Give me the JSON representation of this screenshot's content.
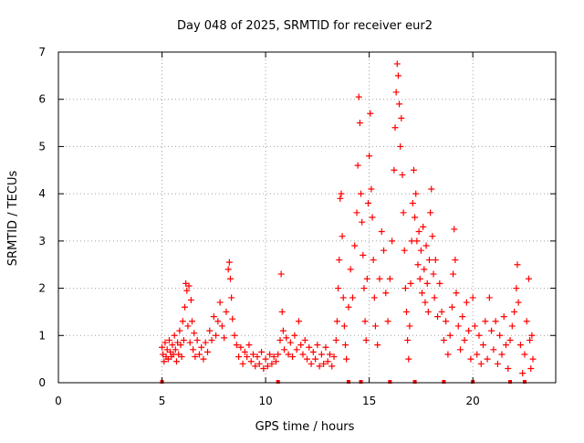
{
  "chart_data": {
    "type": "scatter",
    "title": "Day 048 of 2025, SRMTID for receiver eur2",
    "xlabel": "GPS time / hours",
    "ylabel": "SRMTID / TECUs",
    "xlim": [
      0,
      24
    ],
    "ylim": [
      0,
      7
    ],
    "xticks": [
      0,
      5,
      10,
      15,
      20
    ],
    "xtick_labels": [
      "0",
      "5",
      "10",
      "15",
      "20"
    ],
    "yticks": [
      0,
      1,
      2,
      3,
      4,
      5,
      6,
      7
    ],
    "ytick_labels": [
      "0",
      "1",
      "2",
      "3",
      "4",
      "5",
      "6",
      "7"
    ],
    "grid": true,
    "marker": "+",
    "series": [
      {
        "name": "SRMTID",
        "color": "#ff0000",
        "points": [
          [
            5.0,
            0.75
          ],
          [
            5.05,
            0.6
          ],
          [
            5.1,
            0.45
          ],
          [
            5.15,
            0.85
          ],
          [
            5.2,
            0.55
          ],
          [
            5.25,
            0.7
          ],
          [
            5.3,
            0.5
          ],
          [
            5.35,
            0.9
          ],
          [
            5.4,
            0.65
          ],
          [
            5.45,
            0.55
          ],
          [
            5.5,
            0.8
          ],
          [
            5.55,
            0.6
          ],
          [
            5.6,
            1.0
          ],
          [
            5.65,
            0.7
          ],
          [
            5.7,
            0.45
          ],
          [
            5.75,
            0.85
          ],
          [
            5.8,
            0.6
          ],
          [
            5.85,
            1.1
          ],
          [
            5.9,
            0.8
          ],
          [
            5.95,
            0.55
          ],
          [
            6.0,
            1.3
          ],
          [
            6.05,
            0.9
          ],
          [
            6.1,
            1.6
          ],
          [
            6.15,
            2.1
          ],
          [
            6.2,
            1.95
          ],
          [
            6.25,
            1.2
          ],
          [
            6.3,
            2.05
          ],
          [
            6.35,
            0.85
          ],
          [
            6.4,
            1.75
          ],
          [
            6.45,
            1.3
          ],
          [
            6.5,
            0.7
          ],
          [
            6.55,
            1.05
          ],
          [
            6.6,
            0.55
          ],
          [
            6.7,
            0.9
          ],
          [
            6.8,
            0.6
          ],
          [
            6.9,
            0.75
          ],
          [
            7.0,
            0.5
          ],
          [
            7.1,
            0.85
          ],
          [
            7.2,
            0.65
          ],
          [
            7.3,
            1.1
          ],
          [
            7.4,
            0.9
          ],
          [
            7.5,
            1.4
          ],
          [
            7.6,
            1.0
          ],
          [
            7.7,
            1.3
          ],
          [
            7.8,
            1.7
          ],
          [
            7.9,
            1.2
          ],
          [
            8.0,
            0.95
          ],
          [
            8.1,
            1.5
          ],
          [
            8.2,
            2.4
          ],
          [
            8.25,
            2.55
          ],
          [
            8.3,
            2.2
          ],
          [
            8.35,
            1.8
          ],
          [
            8.4,
            1.35
          ],
          [
            8.5,
            1.0
          ],
          [
            8.6,
            0.8
          ],
          [
            8.7,
            0.55
          ],
          [
            8.8,
            0.75
          ],
          [
            8.9,
            0.4
          ],
          [
            9.0,
            0.65
          ],
          [
            9.1,
            0.55
          ],
          [
            9.2,
            0.8
          ],
          [
            9.3,
            0.45
          ],
          [
            9.4,
            0.6
          ],
          [
            9.5,
            0.35
          ],
          [
            9.6,
            0.55
          ],
          [
            9.7,
            0.4
          ],
          [
            9.8,
            0.65
          ],
          [
            9.9,
            0.3
          ],
          [
            10.0,
            0.5
          ],
          [
            10.1,
            0.35
          ],
          [
            10.2,
            0.6
          ],
          [
            10.3,
            0.4
          ],
          [
            10.4,
            0.55
          ],
          [
            10.5,
            0.45
          ],
          [
            10.6,
            0.6
          ],
          [
            10.7,
            0.9
          ],
          [
            10.75,
            2.3
          ],
          [
            10.8,
            1.5
          ],
          [
            10.85,
            1.1
          ],
          [
            10.9,
            0.7
          ],
          [
            11.0,
            0.95
          ],
          [
            11.1,
            0.6
          ],
          [
            11.2,
            0.85
          ],
          [
            11.3,
            0.55
          ],
          [
            11.4,
            1.0
          ],
          [
            11.5,
            0.7
          ],
          [
            11.6,
            1.3
          ],
          [
            11.7,
            0.8
          ],
          [
            11.8,
            0.6
          ],
          [
            11.9,
            0.9
          ],
          [
            12.0,
            0.5
          ],
          [
            12.1,
            0.75
          ],
          [
            12.2,
            0.4
          ],
          [
            12.3,
            0.65
          ],
          [
            12.4,
            0.5
          ],
          [
            12.5,
            0.8
          ],
          [
            12.6,
            0.35
          ],
          [
            12.7,
            0.6
          ],
          [
            12.8,
            0.4
          ],
          [
            12.9,
            0.75
          ],
          [
            13.0,
            0.45
          ],
          [
            13.1,
            0.6
          ],
          [
            13.2,
            0.35
          ],
          [
            13.3,
            0.55
          ],
          [
            13.4,
            0.9
          ],
          [
            13.45,
            1.3
          ],
          [
            13.5,
            2.0
          ],
          [
            13.55,
            2.6
          ],
          [
            13.6,
            3.9
          ],
          [
            13.65,
            4.0
          ],
          [
            13.7,
            3.1
          ],
          [
            13.75,
            1.8
          ],
          [
            13.8,
            1.2
          ],
          [
            13.85,
            0.8
          ],
          [
            13.9,
            0.5
          ],
          [
            14.0,
            1.6
          ],
          [
            14.1,
            2.4
          ],
          [
            14.2,
            1.8
          ],
          [
            14.3,
            2.9
          ],
          [
            14.4,
            3.6
          ],
          [
            14.45,
            4.6
          ],
          [
            14.5,
            6.05
          ],
          [
            14.55,
            5.5
          ],
          [
            14.6,
            4.0
          ],
          [
            14.65,
            3.4
          ],
          [
            14.7,
            2.7
          ],
          [
            14.75,
            2.0
          ],
          [
            14.8,
            1.3
          ],
          [
            14.85,
            0.9
          ],
          [
            14.9,
            2.2
          ],
          [
            14.95,
            3.8
          ],
          [
            15.0,
            4.8
          ],
          [
            15.05,
            5.7
          ],
          [
            15.1,
            4.1
          ],
          [
            15.15,
            3.5
          ],
          [
            15.2,
            2.6
          ],
          [
            15.25,
            1.8
          ],
          [
            15.3,
            1.2
          ],
          [
            15.4,
            0.8
          ],
          [
            15.5,
            2.2
          ],
          [
            15.6,
            3.2
          ],
          [
            15.7,
            2.8
          ],
          [
            15.8,
            1.9
          ],
          [
            15.9,
            1.3
          ],
          [
            16.0,
            2.2
          ],
          [
            16.1,
            3.0
          ],
          [
            16.2,
            4.5
          ],
          [
            16.25,
            5.4
          ],
          [
            16.3,
            6.15
          ],
          [
            16.35,
            6.75
          ],
          [
            16.4,
            6.5
          ],
          [
            16.45,
            5.9
          ],
          [
            16.5,
            5.0
          ],
          [
            16.55,
            5.6
          ],
          [
            16.6,
            4.4
          ],
          [
            16.65,
            3.6
          ],
          [
            16.7,
            2.8
          ],
          [
            16.75,
            2.0
          ],
          [
            16.8,
            1.5
          ],
          [
            16.85,
            0.9
          ],
          [
            16.9,
            0.5
          ],
          [
            16.95,
            1.2
          ],
          [
            17.0,
            2.1
          ],
          [
            17.05,
            3.0
          ],
          [
            17.1,
            3.8
          ],
          [
            17.15,
            4.5
          ],
          [
            17.2,
            3.5
          ],
          [
            17.25,
            4.0
          ],
          [
            17.3,
            3.0
          ],
          [
            17.35,
            2.5
          ],
          [
            17.4,
            3.2
          ],
          [
            17.45,
            2.2
          ],
          [
            17.5,
            2.8
          ],
          [
            17.55,
            1.9
          ],
          [
            17.6,
            3.3
          ],
          [
            17.65,
            2.4
          ],
          [
            17.7,
            1.7
          ],
          [
            17.75,
            2.9
          ],
          [
            17.8,
            2.1
          ],
          [
            17.85,
            1.5
          ],
          [
            17.9,
            2.6
          ],
          [
            17.95,
            3.6
          ],
          [
            18.0,
            4.1
          ],
          [
            18.05,
            3.1
          ],
          [
            18.1,
            2.3
          ],
          [
            18.15,
            1.8
          ],
          [
            18.2,
            2.6
          ],
          [
            18.3,
            1.4
          ],
          [
            18.4,
            2.1
          ],
          [
            18.5,
            1.5
          ],
          [
            18.6,
            0.9
          ],
          [
            18.7,
            1.3
          ],
          [
            18.8,
            0.6
          ],
          [
            18.9,
            1.0
          ],
          [
            19.0,
            1.6
          ],
          [
            19.05,
            2.3
          ],
          [
            19.1,
            3.25
          ],
          [
            19.15,
            2.6
          ],
          [
            19.2,
            1.9
          ],
          [
            19.3,
            1.2
          ],
          [
            19.4,
            0.7
          ],
          [
            19.5,
            1.4
          ],
          [
            19.6,
            0.9
          ],
          [
            19.7,
            1.7
          ],
          [
            19.8,
            1.1
          ],
          [
            19.9,
            0.5
          ],
          [
            20.0,
            1.8
          ],
          [
            20.1,
            1.2
          ],
          [
            20.2,
            0.6
          ],
          [
            20.3,
            1.0
          ],
          [
            20.4,
            0.4
          ],
          [
            20.5,
            0.8
          ],
          [
            20.6,
            1.3
          ],
          [
            20.7,
            0.5
          ],
          [
            20.8,
            1.8
          ],
          [
            20.9,
            1.1
          ],
          [
            21.0,
            0.7
          ],
          [
            21.1,
            1.3
          ],
          [
            21.2,
            0.4
          ],
          [
            21.3,
            1.0
          ],
          [
            21.4,
            0.6
          ],
          [
            21.5,
            1.4
          ],
          [
            21.6,
            0.8
          ],
          [
            21.7,
            0.3
          ],
          [
            21.8,
            0.9
          ],
          [
            21.9,
            1.2
          ],
          [
            22.0,
            1.5
          ],
          [
            22.1,
            2.0
          ],
          [
            22.15,
            2.5
          ],
          [
            22.2,
            1.7
          ],
          [
            22.3,
            0.8
          ],
          [
            22.4,
            0.2
          ],
          [
            22.5,
            0.6
          ],
          [
            22.6,
            1.3
          ],
          [
            22.7,
            2.2
          ],
          [
            22.75,
            0.9
          ],
          [
            22.8,
            0.3
          ],
          [
            22.85,
            1.0
          ],
          [
            22.9,
            0.5
          ]
        ]
      }
    ],
    "baseline_markers": [
      5.0,
      10.6,
      14.0,
      14.6,
      16.0,
      17.2,
      18.6,
      20.0,
      21.8,
      22.5
    ]
  }
}
